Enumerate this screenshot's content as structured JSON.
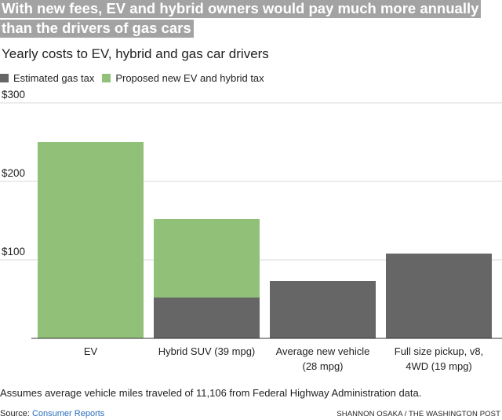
{
  "header": {
    "title_line1": "With new fees, EV and hybrid owners would pay much more annually",
    "title_line2": "than the drivers of gas cars",
    "subtitle": "Yearly costs to EV, hybrid and gas car drivers"
  },
  "legend": [
    {
      "label": "Estimated gas tax",
      "color": "#666666"
    },
    {
      "label": "Proposed new EV and hybrid tax",
      "color": "#91c178"
    }
  ],
  "chart_data": {
    "type": "bar",
    "stacked": true,
    "categories": [
      [
        "EV"
      ],
      [
        "Hybrid SUV (39 mpg)"
      ],
      [
        "Average new vehicle",
        "(28 mpg)"
      ],
      [
        "Full size pickup, v8,",
        "4WD (19 mpg)"
      ]
    ],
    "series": [
      {
        "name": "Estimated gas tax",
        "color": "#666666",
        "values": [
          0,
          52,
          73,
          108
        ]
      },
      {
        "name": "Proposed new EV and hybrid tax",
        "color": "#91c178",
        "values": [
          250,
          100,
          0,
          0
        ]
      }
    ],
    "ylim": [
      0,
      300
    ],
    "yticks": [
      {
        "value": 100,
        "label": "$100"
      },
      {
        "value": 200,
        "label": "$200"
      },
      {
        "value": 300,
        "label": "$300"
      }
    ],
    "grid": true
  },
  "footer": {
    "note": "Assumes average vehicle miles traveled of 11,106 from Federal Highway Administration data.",
    "source_prefix": "Source: ",
    "source_link": "Consumer Reports",
    "credit": "SHANNON OSAKA / THE WASHINGTON POST"
  }
}
